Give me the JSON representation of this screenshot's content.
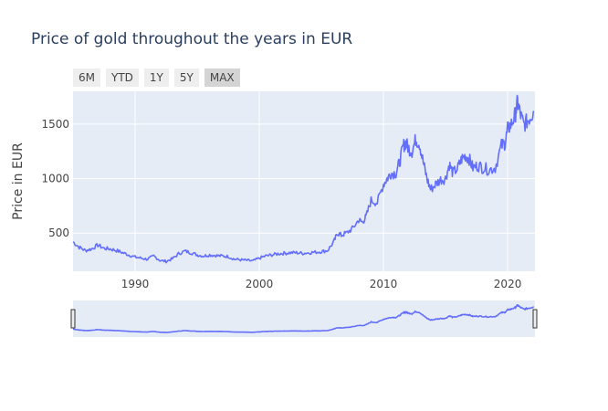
{
  "title": "Price of gold throughout the years in EUR",
  "range_buttons": [
    {
      "label": "6M",
      "active": false
    },
    {
      "label": "YTD",
      "active": false
    },
    {
      "label": "1Y",
      "active": false
    },
    {
      "label": "5Y",
      "active": false
    },
    {
      "label": "MAX",
      "active": true
    }
  ],
  "colors": {
    "plot_bg": "#e5ecf6",
    "grid": "#ffffff",
    "line": "#636efa",
    "text": "#2a3f5f",
    "tick_text": "#444444"
  },
  "chart_data": {
    "type": "line",
    "title": "Price of gold throughout the years in EUR",
    "xlabel": "",
    "ylabel": "Price in EUR",
    "xlim": [
      1985,
      2022.2
    ],
    "ylim": [
      150,
      1800
    ],
    "xticks": [
      1990,
      2000,
      2010,
      2020
    ],
    "yticks": [
      500,
      1000,
      1500
    ],
    "grid": true,
    "legend": "none",
    "rangeslider": true,
    "series": [
      {
        "x": [
          1985.0,
          1985.5,
          1986.0,
          1986.5,
          1987.0,
          1987.5,
          1988.0,
          1988.5,
          1989.0,
          1989.5,
          1990.0,
          1990.5,
          1991.0,
          1991.5,
          1992.0,
          1992.5,
          1993.0,
          1993.5,
          1994.0,
          1994.5,
          1995.0,
          1995.5,
          1996.0,
          1996.5,
          1997.0,
          1997.5,
          1998.0,
          1998.5,
          1999.0,
          1999.5,
          2000.0,
          2000.5,
          2001.0,
          2001.5,
          2002.0,
          2002.5,
          2003.0,
          2003.5,
          2004.0,
          2004.5,
          2005.0,
          2005.5,
          2006.0,
          2006.3,
          2006.6,
          2007.0,
          2007.5,
          2008.0,
          2008.3,
          2008.6,
          2009.0,
          2009.5,
          2010.0,
          2010.3,
          2010.6,
          2011.0,
          2011.3,
          2011.6,
          2011.8,
          2012.0,
          2012.3,
          2012.6,
          2012.9,
          2013.2,
          2013.5,
          2013.8,
          2014.2,
          2014.6,
          2015.0,
          2015.3,
          2015.6,
          2016.0,
          2016.3,
          2016.6,
          2016.9,
          2017.2,
          2017.6,
          2018.0,
          2018.5,
          2019.0,
          2019.5,
          2019.8,
          2020.0,
          2020.3,
          2020.6,
          2020.8,
          2021.0,
          2021.3,
          2021.6,
          2021.9,
          2022.1
        ],
        "y": [
          420,
          370,
          340,
          355,
          390,
          360,
          355,
          340,
          320,
          300,
          280,
          270,
          260,
          290,
          250,
          240,
          265,
          310,
          335,
          320,
          300,
          290,
          300,
          295,
          290,
          285,
          260,
          255,
          250,
          245,
          270,
          290,
          300,
          310,
          315,
          320,
          320,
          315,
          320,
          325,
          330,
          340,
          420,
          500,
          480,
          500,
          540,
          620,
          600,
          650,
          800,
          780,
          950,
          1000,
          1050,
          1050,
          1150,
          1300,
          1330,
          1280,
          1250,
          1360,
          1320,
          1150,
          1000,
          900,
          950,
          990,
          1000,
          1130,
          1050,
          1100,
          1180,
          1210,
          1180,
          1100,
          1120,
          1100,
          1080,
          1100,
          1300,
          1330,
          1450,
          1500,
          1580,
          1700,
          1600,
          1490,
          1530,
          1580,
          1620
        ]
      }
    ]
  }
}
